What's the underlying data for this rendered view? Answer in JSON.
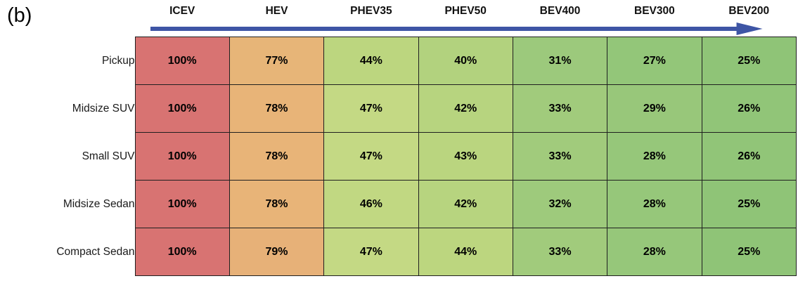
{
  "panel_label": "(b)",
  "chart_data": {
    "type": "heatmap",
    "title": "",
    "columns": [
      "ICEV",
      "HEV",
      "PHEV35",
      "PHEV50",
      "BEV400",
      "BEV300",
      "BEV200"
    ],
    "rows": [
      {
        "label": "Pickup",
        "values": [
          100,
          77,
          44,
          40,
          31,
          27,
          25
        ]
      },
      {
        "label": "Midsize SUV",
        "values": [
          100,
          78,
          47,
          42,
          33,
          29,
          26
        ]
      },
      {
        "label": "Small SUV",
        "values": [
          100,
          78,
          47,
          43,
          33,
          28,
          26
        ]
      },
      {
        "label": "Midsize Sedan",
        "values": [
          100,
          78,
          46,
          42,
          32,
          28,
          25
        ]
      },
      {
        "label": "Compact Sedan",
        "values": [
          100,
          79,
          47,
          44,
          33,
          28,
          25
        ]
      }
    ],
    "value_suffix": "%",
    "value_range": [
      25,
      100
    ],
    "legend": "none",
    "grid": "on",
    "arrow": {
      "direction": "left-to-right",
      "color": "#3e55a5"
    },
    "color_scale": {
      "stops": [
        {
          "value": 25,
          "color": "#8fc477"
        },
        {
          "value": 31,
          "color": "#9cc97c"
        },
        {
          "value": 44,
          "color": "#bcd67f"
        },
        {
          "value": 47,
          "color": "#c4d984"
        },
        {
          "value": 78,
          "color": "#e8b478"
        },
        {
          "value": 100,
          "color": "#d87372"
        }
      ]
    }
  }
}
